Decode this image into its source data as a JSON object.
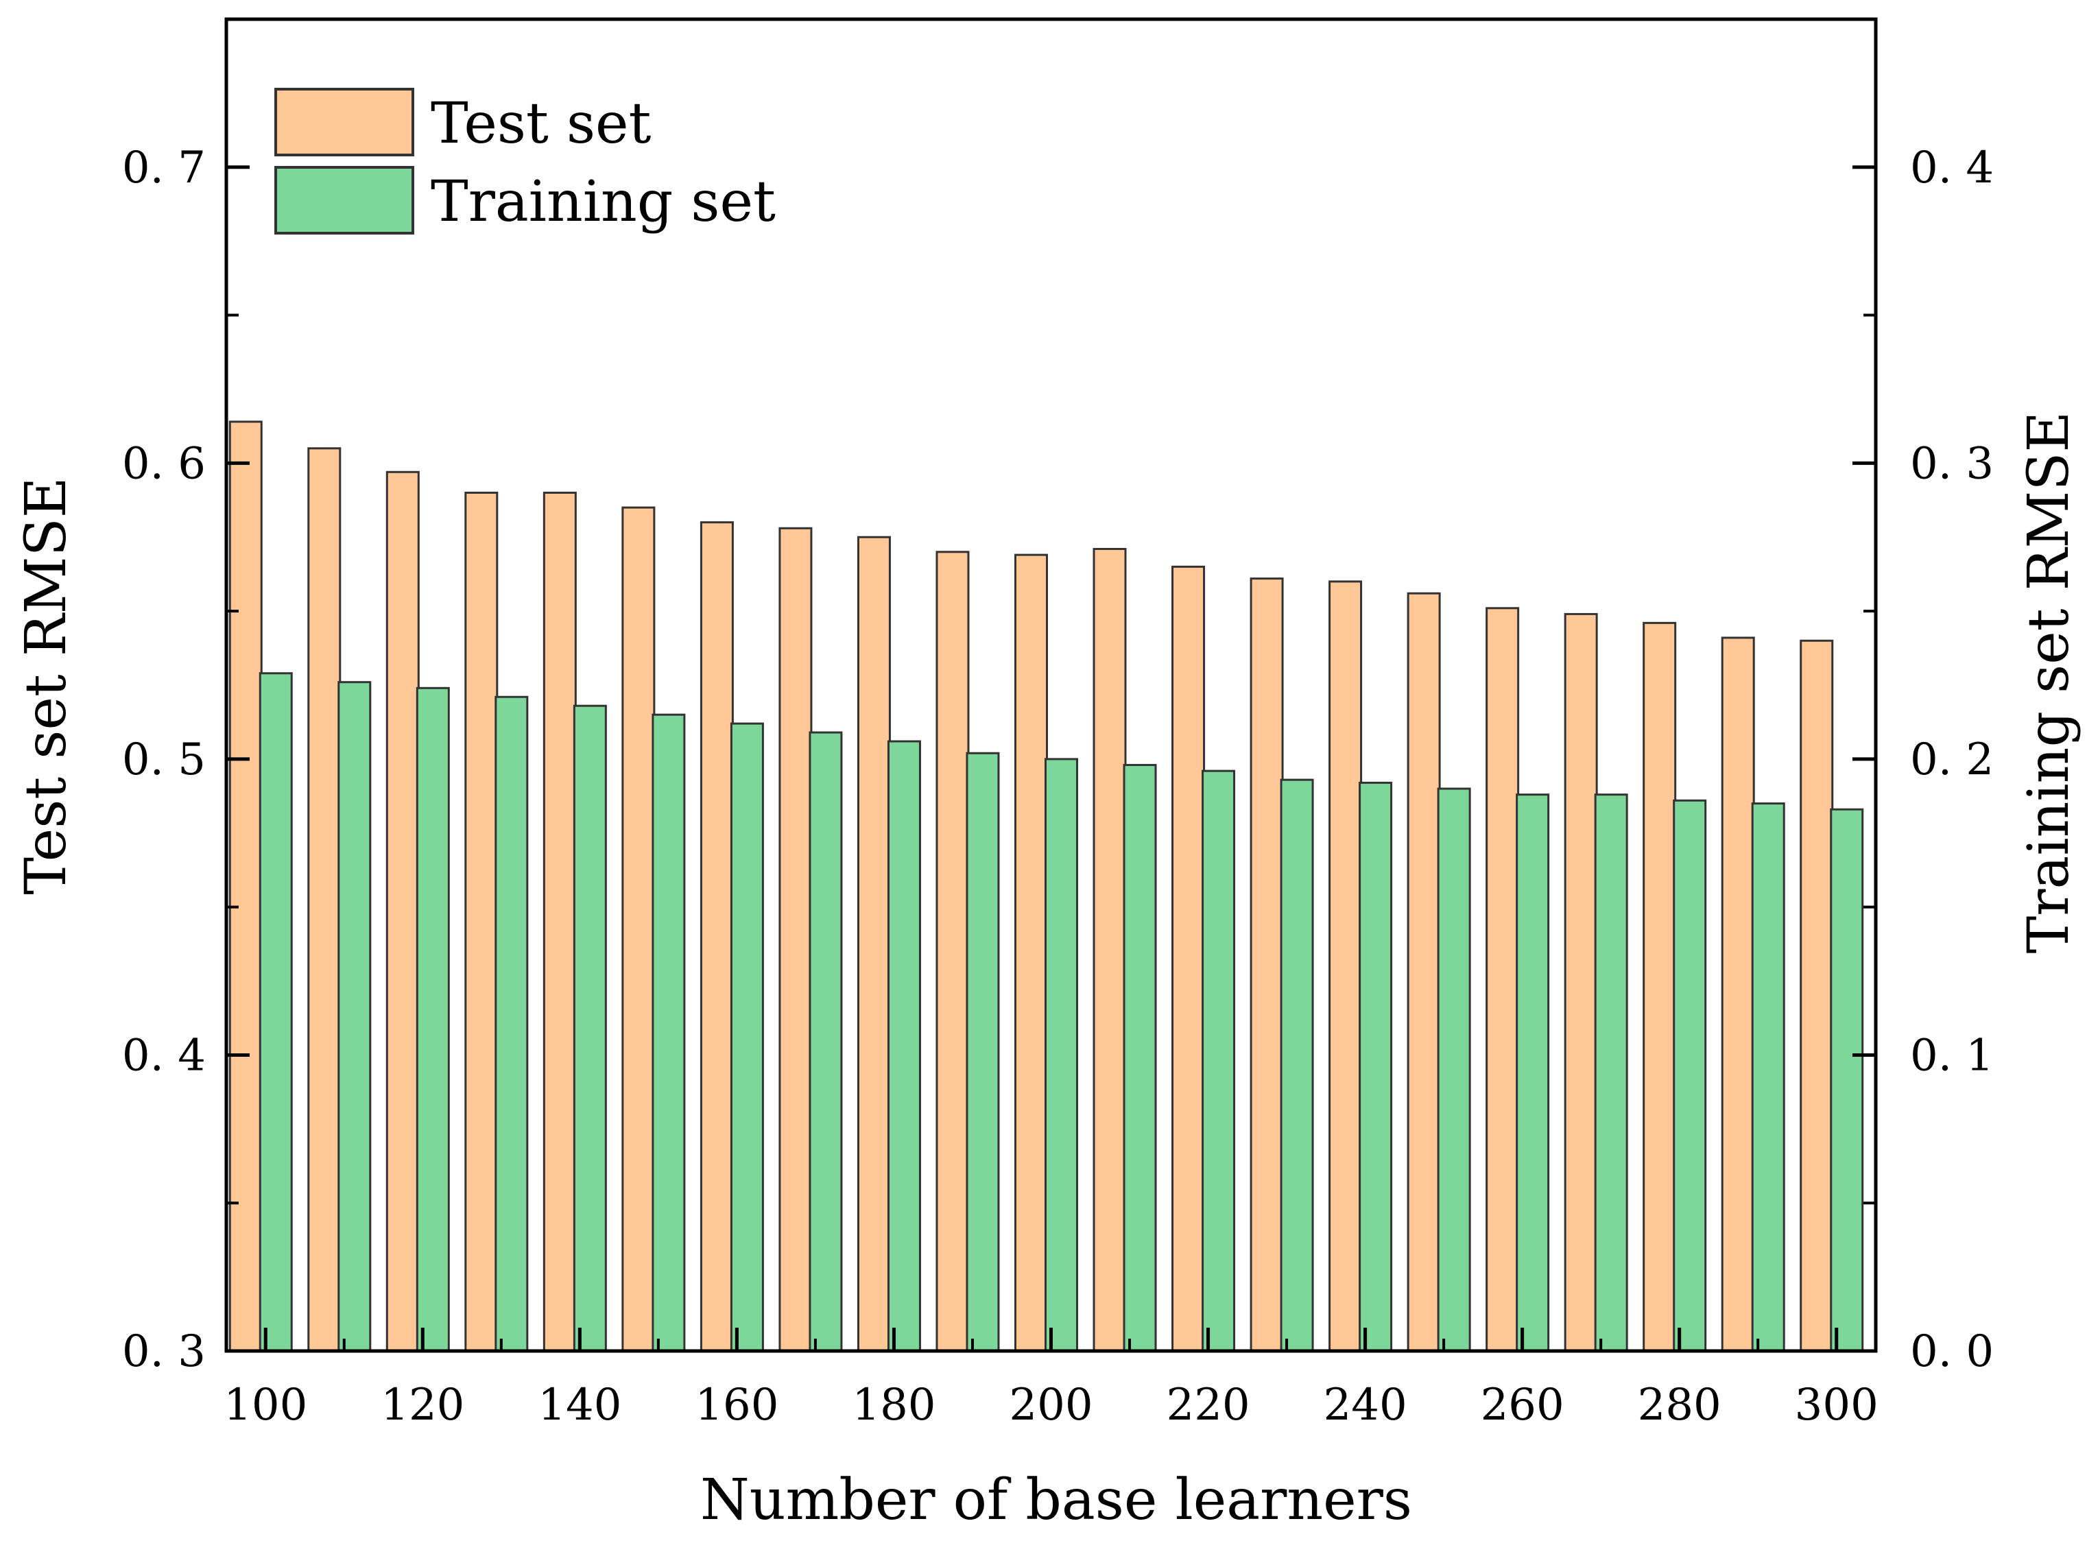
{
  "chart_data": {
    "type": "bar",
    "x": [
      100,
      110,
      120,
      130,
      140,
      150,
      160,
      170,
      180,
      190,
      200,
      210,
      220,
      230,
      240,
      250,
      260,
      270,
      280,
      290,
      300
    ],
    "x_tick_labels": [
      "100",
      "120",
      "140",
      "160",
      "180",
      "200",
      "220",
      "240",
      "260",
      "280",
      "300"
    ],
    "xlabel": "Number of base learners",
    "ylabel_left": "Test set RMSE",
    "ylabel_right": "Training set RMSE",
    "ylim_left": [
      0.3,
      0.75
    ],
    "ylim_right": [
      0.0,
      0.45
    ],
    "y_left_tick_labels": [
      "0. 3",
      "0. 4",
      "0. 5",
      "0. 6",
      "0. 7"
    ],
    "y_right_tick_labels": [
      "0. 0",
      "0. 1",
      "0. 2",
      "0. 3",
      "0. 4"
    ],
    "legend_position": "top-left",
    "grid": false,
    "series": [
      {
        "name": "Test set",
        "axis": "left",
        "color": "#FFC896",
        "values": [
          0.614,
          0.605,
          0.597,
          0.59,
          0.59,
          0.585,
          0.58,
          0.578,
          0.575,
          0.57,
          0.569,
          0.571,
          0.565,
          0.561,
          0.56,
          0.556,
          0.551,
          0.549,
          0.546,
          0.541,
          0.54
        ]
      },
      {
        "name": "Training set",
        "axis": "right",
        "color": "#7ED79A",
        "values": [
          0.229,
          0.226,
          0.224,
          0.221,
          0.218,
          0.215,
          0.212,
          0.209,
          0.206,
          0.202,
          0.2,
          0.198,
          0.196,
          0.193,
          0.192,
          0.19,
          0.188,
          0.188,
          0.186,
          0.185,
          0.183
        ]
      }
    ]
  }
}
